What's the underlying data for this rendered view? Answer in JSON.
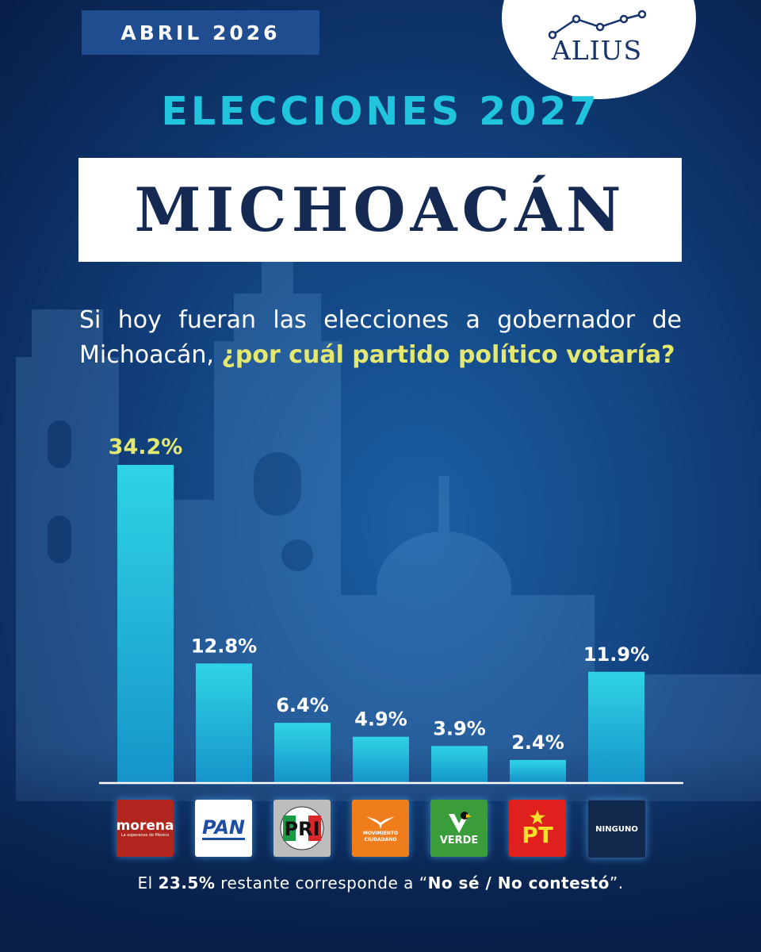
{
  "header": {
    "date_tab": "ABRIL 2026",
    "brand": "ALIUS",
    "kicker": "ELECCIONES 2027",
    "title": "MICHOACÁN"
  },
  "question": {
    "line1": "Si hoy fueran las elecciones a gobernador de",
    "line2_plain": "Michoacán,",
    "line2_highlight": "¿por cuál partido político votaría?"
  },
  "chart_data": {
    "type": "bar",
    "categories": [
      "morena",
      "PAN",
      "PRI",
      "MOVIMIENTO CIUDADANO",
      "VERDE",
      "PT",
      "NINGUNO"
    ],
    "values": [
      34.2,
      12.8,
      6.4,
      4.9,
      3.9,
      2.4,
      11.9
    ],
    "value_labels": [
      "34.2%",
      "12.8%",
      "6.4%",
      "4.9%",
      "3.9%",
      "2.4%",
      "11.9%"
    ],
    "highlight_index": 0,
    "title": "",
    "xlabel": "",
    "ylabel": "",
    "ylim": [
      0,
      34.2
    ],
    "grid": false,
    "colors": {
      "bar_top": "#2fd3e6",
      "bar_bottom": "#1694c9",
      "highlight_label": "#e4e870"
    }
  },
  "party_logos": {
    "morena": {
      "name": "morena",
      "tagline": "La esperanza de México"
    },
    "pan": {
      "name": "PAN"
    },
    "pri": {
      "name": "PRI"
    },
    "mc": {
      "name": "MOVIMIENTO CIUDADANO"
    },
    "verde": {
      "name": "VERDE"
    },
    "pt": {
      "name": "PT"
    },
    "ninguno": {
      "name": "NINGUNO"
    }
  },
  "footnote": {
    "prefix": "El ",
    "pct": "23.5%",
    "middle": " restante corresponde a “",
    "answer": "No sé / No contestó",
    "suffix": "”."
  },
  "colors": {
    "background": "#12427f",
    "accent_cyan": "#20c4dc",
    "highlight_yellow": "#e4e870",
    "title_navy": "#142a52"
  }
}
